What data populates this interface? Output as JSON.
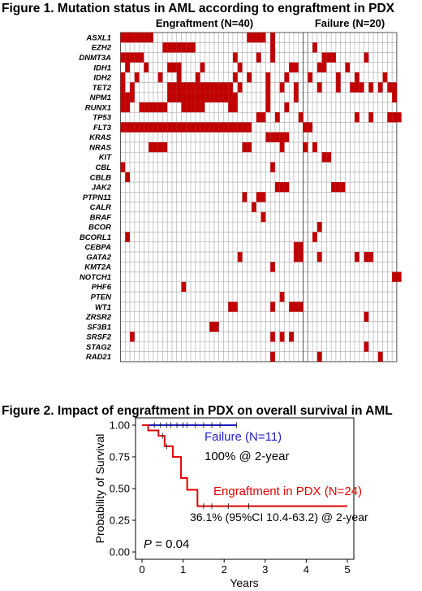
{
  "figure1": {
    "title": "Figure 1. Mutation status in AML according to engraftment in PDX",
    "groups": [
      {
        "label": "Engraftment (N=40)",
        "n": 40
      },
      {
        "label": "Failure (N=20)",
        "n": 20
      }
    ],
    "genes": [
      "ASXL1",
      "EZH2",
      "DNMT3A",
      "IDH1",
      "IDH2",
      "TET2",
      "NPM1",
      "RUNX1",
      "TP53",
      "FLT3",
      "KRAS",
      "NRAS",
      "KIT",
      "CBL",
      "CBLB",
      "JAK2",
      "PTPN11",
      "CALR",
      "BRAF",
      "BCOR",
      "BCORL1",
      "CEBPA",
      "GATA2",
      "KMT2A",
      "NOTCH1",
      "PHF6",
      "PTEN",
      "WT1",
      "ZRSR2",
      "SF3B1",
      "SRSF2",
      "STAG2",
      "RAD21"
    ],
    "mutations": {
      "ASXL1": {
        "engraftment": [
          0,
          1,
          2,
          3,
          4,
          5,
          6,
          27,
          28,
          29,
          30,
          32
        ],
        "failure": []
      },
      "EZH2": {
        "engraftment": [
          9,
          10,
          11,
          12,
          13,
          14,
          15,
          32
        ],
        "failure": [
          2
        ]
      },
      "DNMT3A": {
        "engraftment": [
          0,
          1,
          2,
          3,
          4,
          24,
          29,
          32
        ],
        "failure": [
          4,
          5,
          6,
          13
        ]
      },
      "IDH1": {
        "engraftment": [
          1,
          5,
          10,
          11,
          12,
          17,
          25,
          36,
          37
        ],
        "failure": [
          3,
          4,
          9
        ]
      },
      "IDH2": {
        "engraftment": [
          0,
          3,
          8,
          12,
          16,
          24,
          27,
          31,
          35
        ],
        "failure": [
          1,
          7,
          11,
          17
        ]
      },
      "TET2": {
        "engraftment": [
          0,
          2,
          10,
          11,
          12,
          13,
          14,
          15,
          16,
          17,
          18,
          19,
          20,
          21,
          22,
          23,
          25,
          31,
          34,
          37
        ],
        "failure": [
          3,
          7,
          10,
          11,
          12,
          14,
          16,
          18,
          19
        ]
      },
      "NPM1": {
        "engraftment": [
          0,
          1,
          2,
          10,
          11,
          12,
          13,
          14,
          15,
          16,
          17,
          18,
          19,
          20,
          21,
          22,
          23,
          24,
          31,
          37
        ],
        "failure": [
          19
        ]
      },
      "RUNX1": {
        "engraftment": [
          0,
          1,
          4,
          5,
          6,
          7,
          8,
          9,
          13,
          14,
          15,
          16,
          17,
          23,
          24,
          31,
          35
        ],
        "failure": []
      },
      "TP53": {
        "engraftment": [
          29,
          30,
          33,
          38
        ],
        "failure": [
          11,
          14,
          18,
          19,
          20
        ]
      },
      "FLT3": {
        "engraftment": [
          0,
          1,
          2,
          3,
          4,
          5,
          6,
          7,
          8,
          9,
          10,
          11,
          12,
          13,
          14,
          15,
          16,
          17,
          18,
          19,
          20,
          21,
          22,
          23,
          24,
          25,
          26,
          27
        ],
        "failure": [
          0,
          1
        ]
      },
      "KRAS": {
        "engraftment": [
          31,
          32,
          33,
          34,
          35
        ],
        "failure": []
      },
      "NRAS": {
        "engraftment": [
          6,
          7,
          8,
          9,
          26,
          27,
          34
        ],
        "failure": [
          0,
          2
        ]
      },
      "KIT": {
        "engraftment": [],
        "failure": [
          4,
          5
        ]
      },
      "CBL": {
        "engraftment": [
          0,
          32
        ],
        "failure": []
      },
      "CBLB": {
        "engraftment": [
          1
        ],
        "failure": []
      },
      "JAK2": {
        "engraftment": [
          33,
          34,
          35
        ],
        "failure": [
          6,
          7,
          8
        ]
      },
      "PTPN11": {
        "engraftment": [
          26,
          29,
          30
        ],
        "failure": []
      },
      "CALR": {
        "engraftment": [
          28
        ],
        "failure": []
      },
      "BRAF": {
        "engraftment": [
          30
        ],
        "failure": []
      },
      "BCOR": {
        "engraftment": [],
        "failure": [
          3
        ]
      },
      "BCORL1": {
        "engraftment": [
          1
        ],
        "failure": [
          2
        ]
      },
      "CEBPA": {
        "engraftment": [
          37,
          38
        ],
        "failure": []
      },
      "GATA2": {
        "engraftment": [
          25,
          37,
          38
        ],
        "failure": [
          3,
          11,
          13,
          14
        ]
      },
      "KMT2A": {
        "engraftment": [
          32
        ],
        "failure": []
      },
      "NOTCH1": {
        "engraftment": [],
        "failure": [
          19,
          20
        ]
      },
      "PHF6": {
        "engraftment": [
          13
        ],
        "failure": []
      },
      "PTEN": {
        "engraftment": [
          34
        ],
        "failure": []
      },
      "WT1": {
        "engraftment": [
          23,
          24,
          32,
          36,
          37,
          38
        ],
        "failure": []
      },
      "ZRSR2": {
        "engraftment": [],
        "failure": [
          13
        ]
      },
      "SF3B1": {
        "engraftment": [
          19,
          20
        ],
        "failure": []
      },
      "SRSF2": {
        "engraftment": [
          2,
          32,
          34,
          36
        ],
        "failure": []
      },
      "STAG2": {
        "engraftment": [],
        "failure": [
          13
        ]
      },
      "RAD21": {
        "engraftment": [
          32
        ],
        "failure": [
          3,
          16
        ]
      }
    },
    "colors": {
      "mutated": "#c00000",
      "grid": "#a6a6a6"
    }
  },
  "figure2": {
    "title": "Figure 2. Impact of  engraftment in PDX on overall survival in AML",
    "chart_data": {
      "type": "line",
      "xlabel": "Years",
      "ylabel": "Probability of Survival",
      "xlim": [
        0,
        5
      ],
      "ylim": [
        0,
        1
      ],
      "xticks": [
        "0",
        "1",
        "2",
        "3",
        "4",
        "5"
      ],
      "yticks": [
        "0.00",
        "0.25",
        "0.50",
        "0.75",
        "1.00"
      ],
      "series": [
        {
          "name": "Failure (N=11)",
          "color": "#1f1fbf",
          "x": [
            0,
            2.3
          ],
          "y": [
            1.0,
            1.0
          ],
          "censor_x": [
            0.3,
            0.45,
            0.6,
            0.7,
            0.85,
            1.0,
            1.1,
            1.3,
            1.5,
            1.7,
            1.9,
            2.3
          ]
        },
        {
          "name": "Engraftment in PDX (N=24)",
          "color": "#e60000",
          "x": [
            0,
            0.15,
            0.4,
            0.55,
            0.75,
            0.95,
            1.1,
            1.35,
            5.0
          ],
          "y": [
            1.0,
            0.958,
            0.917,
            0.833,
            0.75,
            0.583,
            0.49,
            0.361,
            0.361
          ],
          "censor_x": [
            0.5,
            0.6,
            1.5,
            1.7,
            2.1,
            2.6
          ]
        }
      ],
      "annotations": [
        {
          "text": "Failure (N=11)",
          "color": "#1f1fbf"
        },
        {
          "text": "100% @ 2-year",
          "color": "#000000"
        },
        {
          "text": "Engraftment  in PDX (N=24)",
          "color": "#e60000"
        },
        {
          "text": "36.1% (95%CI 10.4-63.2) @ 2-year",
          "color": "#000000"
        }
      ],
      "pvalue": {
        "label": "P",
        "text": " = 0.04"
      }
    }
  }
}
